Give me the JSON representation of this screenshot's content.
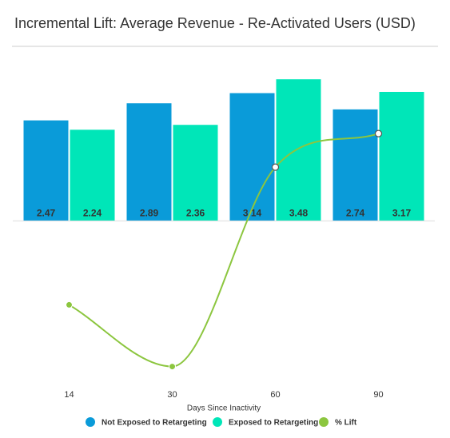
{
  "chart_data": {
    "type": "bar",
    "title": "Incremental Lift: Average Revenue - Re-Activated Users (USD)",
    "x_label": "Days Since Inactivity",
    "categories": [
      "14",
      "30",
      "60",
      "90"
    ],
    "series": [
      {
        "name": "Not Exposed to Retargeting",
        "color": "#0a9bd9",
        "values": [
          2.47,
          2.89,
          3.14,
          2.74
        ]
      },
      {
        "name": "Exposed to Retargeting",
        "color": "#00e6b8",
        "values": [
          2.24,
          2.36,
          3.48,
          3.17
        ]
      },
      {
        "name": "% Lift",
        "color": "#8cc63f",
        "type": "line",
        "axis": "y2",
        "values": [
          -9.3,
          -18.3,
          10.8,
          15.7
        ]
      }
    ],
    "ylim": [
      -4,
      4.25
    ],
    "y2lim": [
      -20.8,
      28.2
    ],
    "legend": "bottom"
  }
}
